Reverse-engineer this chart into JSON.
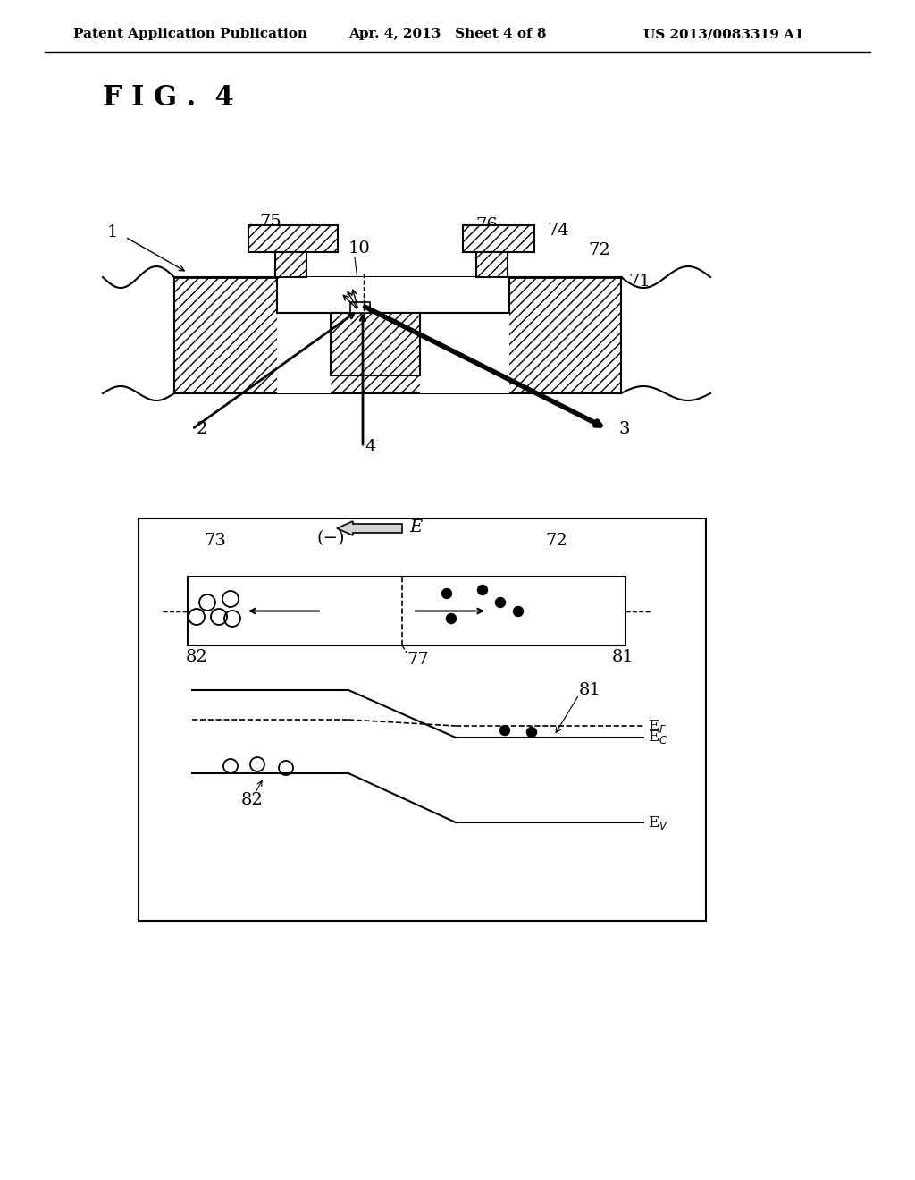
{
  "bg_color": "#ffffff",
  "header_left": "Patent Application Publication",
  "header_mid": "Apr. 4, 2013   Sheet 4 of 8",
  "header_right": "US 2013/0083319 A1",
  "fig_label": "F I G .  4"
}
